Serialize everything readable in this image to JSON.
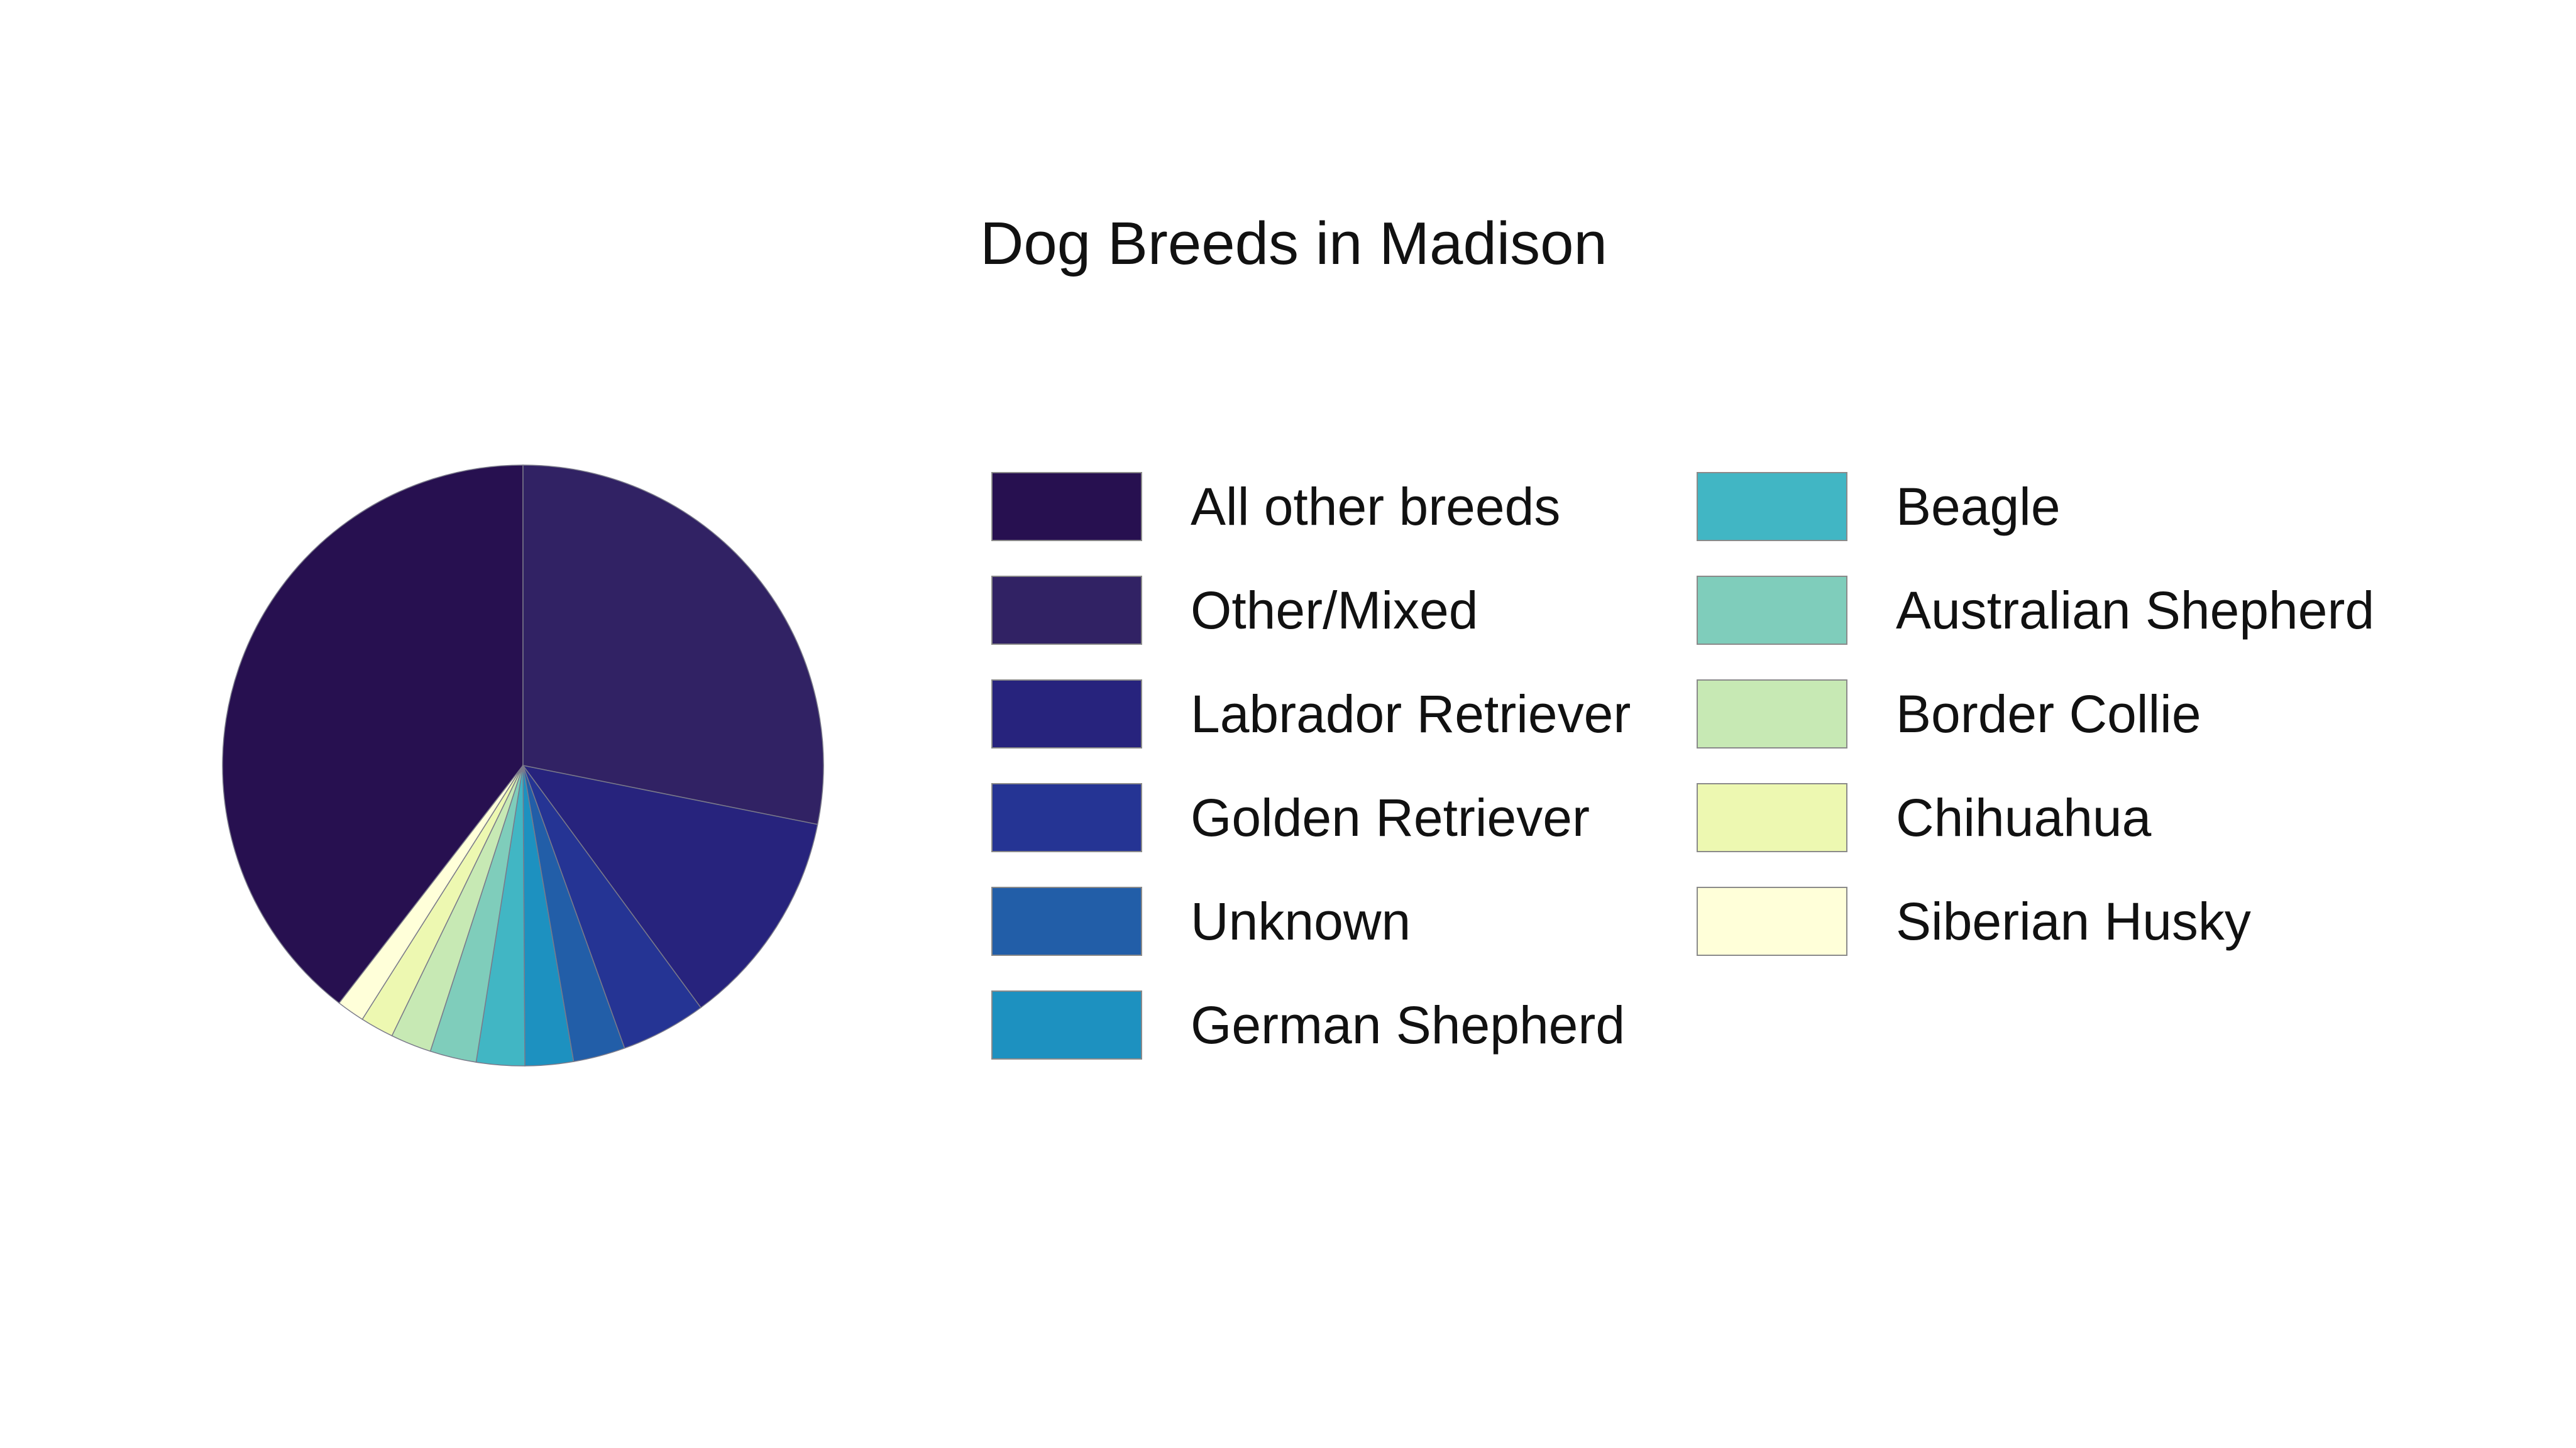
{
  "chart_data": {
    "type": "pie",
    "title": "Dog Breeds in Madison",
    "legend_position": "right",
    "slices": [
      {
        "label": "All other breeds",
        "value": 39.6,
        "color": "#271050"
      },
      {
        "label": "Other/Mixed",
        "value": 28.2,
        "color": "#312264"
      },
      {
        "label": "Labrador Retriever",
        "value": 11.8,
        "color": "#27237d"
      },
      {
        "label": "Golden Retriever",
        "value": 4.6,
        "color": "#253494"
      },
      {
        "label": "Unknown",
        "value": 2.8,
        "color": "#225ea8"
      },
      {
        "label": "German Shepherd",
        "value": 2.6,
        "color": "#1d91c0"
      },
      {
        "label": "Beagle",
        "value": 2.6,
        "color": "#41b6c4"
      },
      {
        "label": "Australian Shepherd",
        "value": 2.5,
        "color": "#7fcdbb"
      },
      {
        "label": "Border Collie",
        "value": 2.2,
        "color": "#c7e9b4"
      },
      {
        "label": "Chihuahua",
        "value": 1.8,
        "color": "#edf8b1"
      },
      {
        "label": "Siberian Husky",
        "value": 1.5,
        "color": "#ffffd9"
      }
    ]
  }
}
